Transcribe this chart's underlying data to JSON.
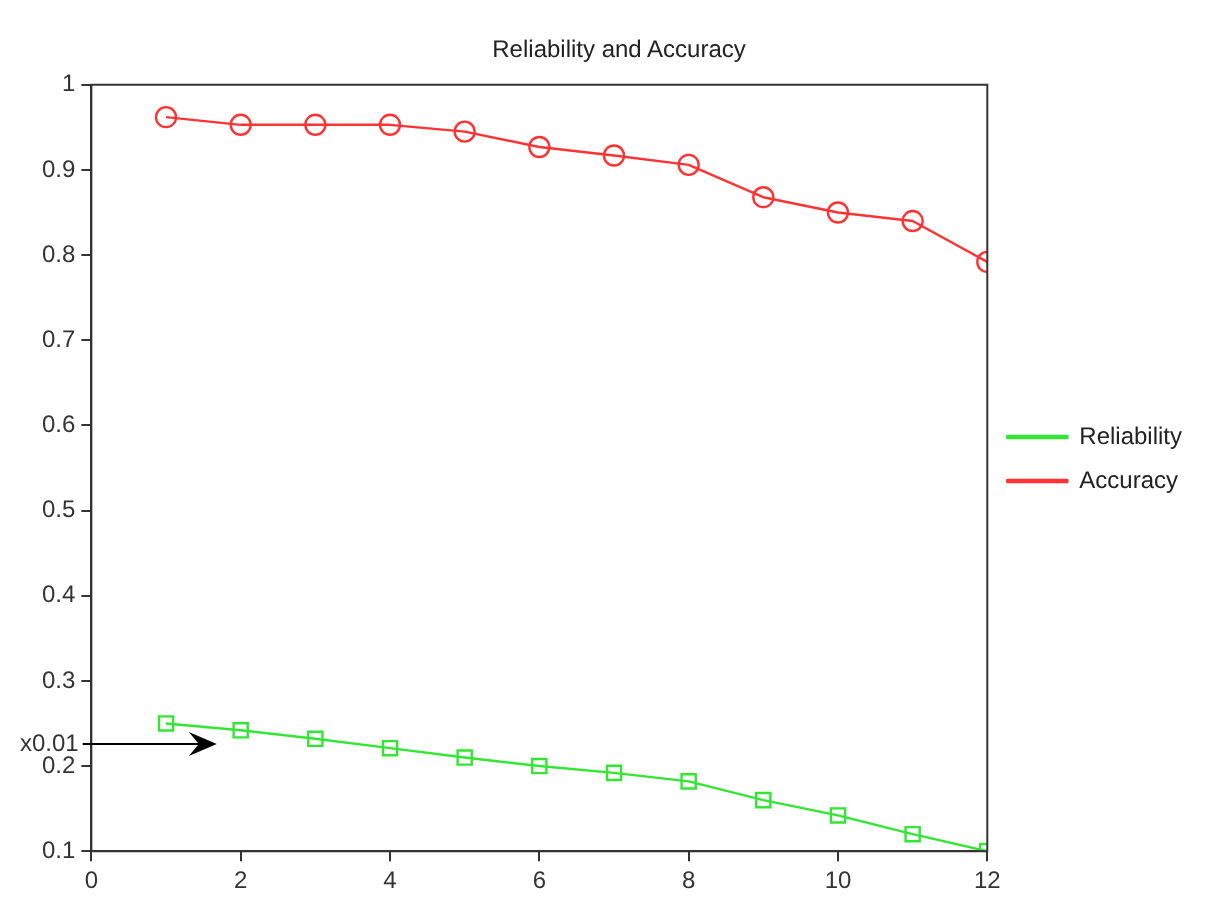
{
  "chart_data": {
    "type": "line",
    "title": "Reliability and Accuracy",
    "x": [
      1,
      2,
      3,
      4,
      5,
      6,
      7,
      8,
      9,
      10,
      11,
      12
    ],
    "series": [
      {
        "name": "Reliability",
        "color": "#33e633",
        "marker": "square",
        "values": [
          0.25,
          0.242,
          0.232,
          0.221,
          0.21,
          0.2,
          0.192,
          0.182,
          0.16,
          0.142,
          0.12,
          0.1
        ]
      },
      {
        "name": "Accuracy",
        "color": "#ff3333",
        "marker": "circle",
        "values": [
          0.962,
          0.953,
          0.953,
          0.953,
          0.945,
          0.927,
          0.917,
          0.906,
          0.868,
          0.85,
          0.84,
          0.792
        ]
      }
    ],
    "xlim": [
      0,
      12
    ],
    "xticks": [
      0,
      2,
      4,
      6,
      8,
      10,
      12
    ],
    "ylim": [
      0.1,
      1
    ],
    "yticks": [
      0.1,
      0.2,
      0.3,
      0.4,
      0.5,
      0.6,
      0.7,
      0.8,
      0.9,
      1
    ],
    "grid": false,
    "legend": "right",
    "annotations": [
      "x0.01"
    ]
  }
}
